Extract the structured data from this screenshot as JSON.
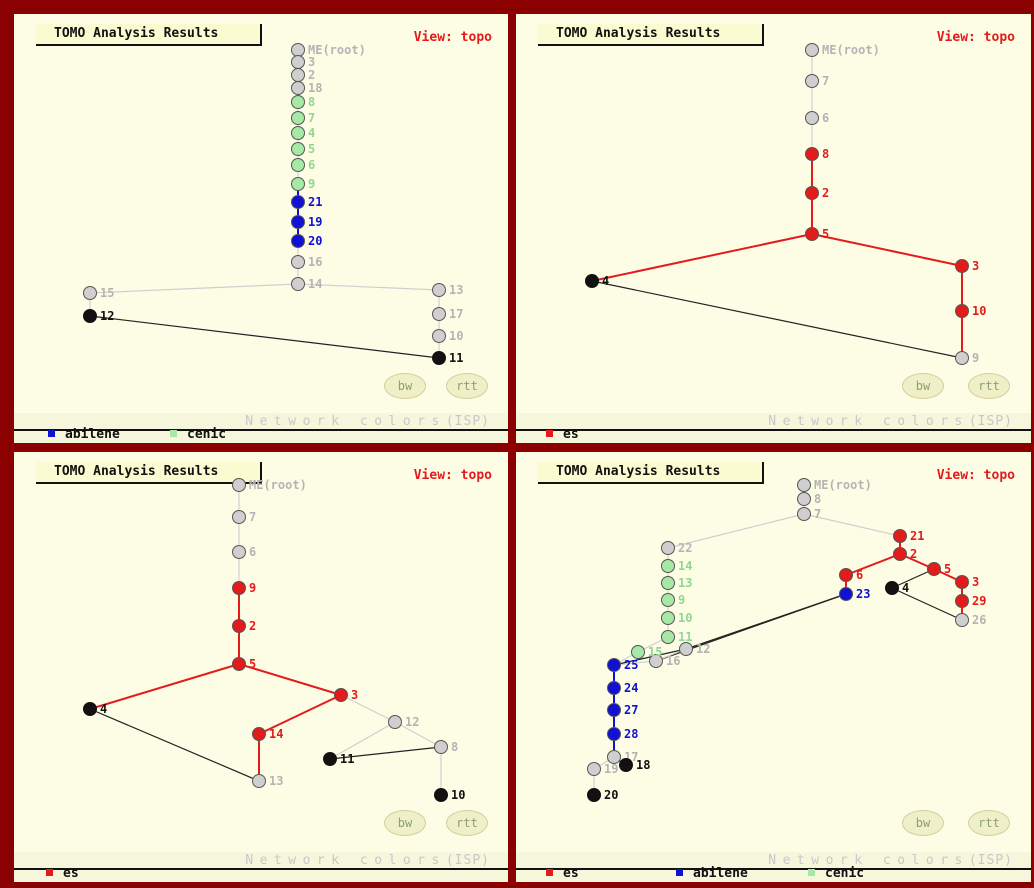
{
  "colors": {
    "red": "#e31b1b",
    "blue": "#1111d4",
    "green": "#a6e8a6",
    "gray": "#cfcfcf",
    "black": "#111111",
    "gray_text": "#b4b4b4",
    "green_text": "#8fd88f",
    "edge_gray": "#cfcfcf",
    "edge_black": "#222222"
  },
  "panels": [
    {
      "title": "TOMO Analysis Results",
      "view_label": "View: topo",
      "buttons": {
        "bw": "bw",
        "rtt": "rtt"
      },
      "network_colors_label": "Network colors",
      "isp_label": "(ISP)",
      "legend": [
        {
          "label": "abilene",
          "color": "blue"
        },
        {
          "label": "cenic",
          "color": "green"
        }
      ],
      "nodes": [
        {
          "id": "ME(root)",
          "color": "gray"
        },
        {
          "id": "3",
          "color": "gray"
        },
        {
          "id": "2",
          "color": "gray"
        },
        {
          "id": "18",
          "color": "gray"
        },
        {
          "id": "8",
          "color": "green"
        },
        {
          "id": "7",
          "color": "green"
        },
        {
          "id": "4",
          "color": "green"
        },
        {
          "id": "5",
          "color": "green"
        },
        {
          "id": "6",
          "color": "green"
        },
        {
          "id": "9",
          "color": "green"
        },
        {
          "id": "21",
          "color": "blue"
        },
        {
          "id": "19",
          "color": "blue"
        },
        {
          "id": "20",
          "color": "blue"
        },
        {
          "id": "16",
          "color": "gray"
        },
        {
          "id": "14",
          "color": "gray"
        },
        {
          "id": "15",
          "color": "gray"
        },
        {
          "id": "12",
          "color": "black"
        },
        {
          "id": "13",
          "color": "gray"
        },
        {
          "id": "17",
          "color": "gray"
        },
        {
          "id": "10",
          "color": "gray"
        },
        {
          "id": "11",
          "color": "black"
        }
      ],
      "edges": [
        [
          "ME(root)",
          "3",
          "gray"
        ],
        [
          "3",
          "2",
          "gray"
        ],
        [
          "2",
          "18",
          "gray"
        ],
        [
          "18",
          "8",
          "gray"
        ],
        [
          "8",
          "7",
          "gray"
        ],
        [
          "7",
          "4",
          "gray"
        ],
        [
          "4",
          "5",
          "gray"
        ],
        [
          "5",
          "6",
          "gray"
        ],
        [
          "6",
          "9",
          "gray"
        ],
        [
          "9",
          "21",
          "blue"
        ],
        [
          "21",
          "19",
          "blue"
        ],
        [
          "19",
          "20",
          "blue"
        ],
        [
          "20",
          "16",
          "gray"
        ],
        [
          "16",
          "14",
          "gray"
        ],
        [
          "14",
          "15",
          "gray"
        ],
        [
          "14",
          "13",
          "gray"
        ],
        [
          "15",
          "12",
          "gray"
        ],
        [
          "13",
          "17",
          "gray"
        ],
        [
          "17",
          "10",
          "gray"
        ],
        [
          "10",
          "11",
          "gray"
        ],
        [
          "12",
          "11",
          "black"
        ]
      ]
    },
    {
      "title": "TOMO Analysis Results",
      "view_label": "View: topo",
      "buttons": {
        "bw": "bw",
        "rtt": "rtt"
      },
      "network_colors_label": "Network colors",
      "isp_label": "(ISP)",
      "legend": [
        {
          "label": "es",
          "color": "red"
        }
      ],
      "nodes": [
        {
          "id": "ME(root)",
          "color": "gray"
        },
        {
          "id": "7",
          "color": "gray"
        },
        {
          "id": "6",
          "color": "gray"
        },
        {
          "id": "8",
          "color": "red"
        },
        {
          "id": "2",
          "color": "red"
        },
        {
          "id": "5",
          "color": "red"
        },
        {
          "id": "4",
          "color": "black"
        },
        {
          "id": "3",
          "color": "red"
        },
        {
          "id": "10",
          "color": "red"
        },
        {
          "id": "9",
          "color": "gray"
        }
      ],
      "edges": [
        [
          "ME(root)",
          "7",
          "gray"
        ],
        [
          "7",
          "6",
          "gray"
        ],
        [
          "6",
          "8",
          "gray"
        ],
        [
          "8",
          "2",
          "red"
        ],
        [
          "2",
          "5",
          "red"
        ],
        [
          "5",
          "4",
          "red"
        ],
        [
          "5",
          "3",
          "red"
        ],
        [
          "3",
          "10",
          "red"
        ],
        [
          "10",
          "9",
          "red"
        ],
        [
          "4",
          "9",
          "black"
        ]
      ]
    },
    {
      "title": "TOMO Analysis Results",
      "view_label": "View: topo",
      "buttons": {
        "bw": "bw",
        "rtt": "rtt"
      },
      "network_colors_label": "Network colors",
      "isp_label": "(ISP)",
      "legend": [
        {
          "label": "es",
          "color": "red"
        }
      ],
      "nodes": [
        {
          "id": "ME(root)",
          "color": "gray"
        },
        {
          "id": "7",
          "color": "gray"
        },
        {
          "id": "6",
          "color": "gray"
        },
        {
          "id": "9",
          "color": "red"
        },
        {
          "id": "2",
          "color": "red"
        },
        {
          "id": "5",
          "color": "red"
        },
        {
          "id": "4",
          "color": "black"
        },
        {
          "id": "3",
          "color": "red"
        },
        {
          "id": "14",
          "color": "red"
        },
        {
          "id": "13",
          "color": "gray"
        },
        {
          "id": "12",
          "color": "gray"
        },
        {
          "id": "8",
          "color": "gray"
        },
        {
          "id": "11",
          "color": "black"
        },
        {
          "id": "10",
          "color": "black"
        }
      ],
      "edges": [
        [
          "ME(root)",
          "7",
          "gray"
        ],
        [
          "7",
          "6",
          "gray"
        ],
        [
          "6",
          "9",
          "gray"
        ],
        [
          "9",
          "2",
          "red"
        ],
        [
          "2",
          "5",
          "red"
        ],
        [
          "5",
          "4",
          "red"
        ],
        [
          "5",
          "3",
          "red"
        ],
        [
          "3",
          "14",
          "red"
        ],
        [
          "14",
          "13",
          "red"
        ],
        [
          "3",
          "12",
          "gray"
        ],
        [
          "12",
          "8",
          "gray"
        ],
        [
          "12",
          "11",
          "gray"
        ],
        [
          "8",
          "10",
          "gray"
        ],
        [
          "8",
          "11",
          "black"
        ],
        [
          "4",
          "13",
          "black"
        ]
      ]
    },
    {
      "title": "TOMO Analysis Results",
      "view_label": "View: topo",
      "buttons": {
        "bw": "bw",
        "rtt": "rtt"
      },
      "network_colors_label": "Network colors",
      "isp_label": "(ISP)",
      "legend": [
        {
          "label": "es",
          "color": "red"
        },
        {
          "label": "abilene",
          "color": "blue"
        },
        {
          "label": "cenic",
          "color": "green"
        }
      ],
      "nodes": [
        {
          "id": "ME(root)",
          "color": "gray"
        },
        {
          "id": "8",
          "color": "gray"
        },
        {
          "id": "7",
          "color": "gray"
        },
        {
          "id": "21",
          "color": "red"
        },
        {
          "id": "2",
          "color": "red"
        },
        {
          "id": "5",
          "color": "red"
        },
        {
          "id": "3",
          "color": "red"
        },
        {
          "id": "29",
          "color": "red"
        },
        {
          "id": "26",
          "color": "gray"
        },
        {
          "id": "6",
          "color": "red"
        },
        {
          "id": "23",
          "color": "blue"
        },
        {
          "id": "4",
          "color": "black"
        },
        {
          "id": "22",
          "color": "gray"
        },
        {
          "id": "14",
          "color": "green"
        },
        {
          "id": "13",
          "color": "green"
        },
        {
          "id": "9",
          "color": "green"
        },
        {
          "id": "10",
          "color": "green"
        },
        {
          "id": "11",
          "color": "green"
        },
        {
          "id": "12",
          "color": "gray"
        },
        {
          "id": "16",
          "color": "gray"
        },
        {
          "id": "25",
          "color": "blue"
        },
        {
          "id": "24",
          "color": "blue"
        },
        {
          "id": "27",
          "color": "blue"
        },
        {
          "id": "28",
          "color": "blue"
        },
        {
          "id": "17",
          "color": "gray"
        },
        {
          "id": "18",
          "color": "black"
        },
        {
          "id": "19",
          "color": "gray"
        },
        {
          "id": "20",
          "color": "black"
        },
        {
          "id": "15",
          "color": "green"
        }
      ],
      "edges": [
        [
          "ME(root)",
          "8",
          "gray"
        ],
        [
          "8",
          "7",
          "gray"
        ],
        [
          "7",
          "21",
          "gray"
        ],
        [
          "7",
          "22",
          "gray"
        ],
        [
          "21",
          "2",
          "red"
        ],
        [
          "2",
          "6",
          "red"
        ],
        [
          "2",
          "5",
          "red"
        ],
        [
          "5",
          "3",
          "red"
        ],
        [
          "3",
          "29",
          "red"
        ],
        [
          "29",
          "26",
          "red"
        ],
        [
          "5",
          "4",
          "black"
        ],
        [
          "4",
          "26",
          "black"
        ],
        [
          "6",
          "23",
          "red"
        ],
        [
          "23",
          "12",
          "black"
        ],
        [
          "23",
          "16",
          "black"
        ],
        [
          "22",
          "14",
          "gray"
        ],
        [
          "14",
          "13",
          "gray"
        ],
        [
          "13",
          "9",
          "gray"
        ],
        [
          "9",
          "10",
          "gray"
        ],
        [
          "10",
          "11",
          "gray"
        ],
        [
          "11",
          "15",
          "gray"
        ],
        [
          "15",
          "25",
          "gray"
        ],
        [
          "12",
          "16",
          "gray"
        ],
        [
          "16",
          "25",
          "gray"
        ],
        [
          "12",
          "25",
          "black"
        ],
        [
          "25",
          "24",
          "blue"
        ],
        [
          "24",
          "27",
          "blue"
        ],
        [
          "27",
          "28",
          "blue"
        ],
        [
          "28",
          "17",
          "blue"
        ],
        [
          "17",
          "18",
          "black"
        ],
        [
          "17",
          "19",
          "gray"
        ],
        [
          "19",
          "20",
          "gray"
        ]
      ]
    }
  ]
}
